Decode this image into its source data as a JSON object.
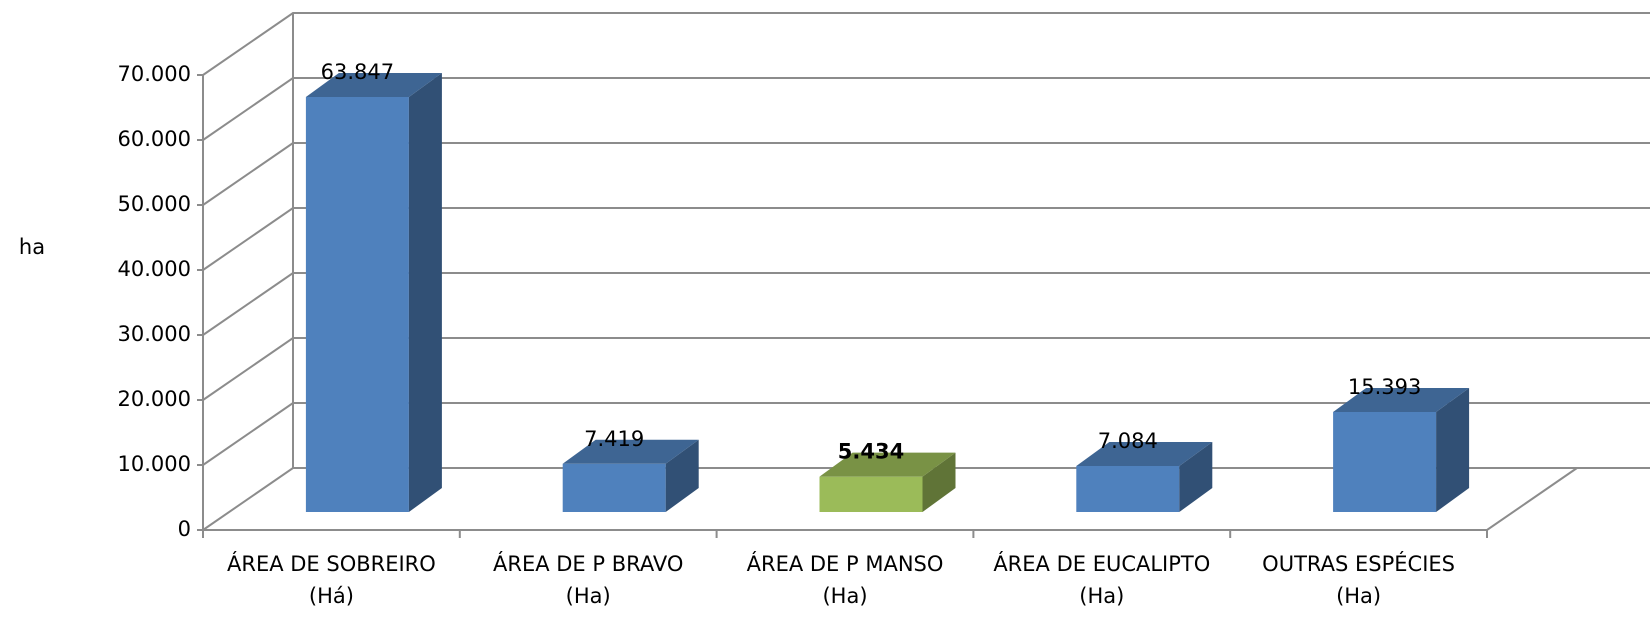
{
  "chart_data": {
    "type": "bar3d",
    "y_label": "ha",
    "categories": [
      "ÁREA DE SOBREIRO (Há)",
      "ÁREA DE P BRAVO (Ha)",
      "ÁREA DE P MANSO (Ha)",
      "ÁREA DE EUCALIPTO (Ha)",
      "OUTRAS ESPÉCIES (Ha)"
    ],
    "values": [
      63847,
      7419,
      5434,
      7084,
      15393
    ],
    "value_labels": [
      "63.847",
      "7.419",
      "5.434",
      "7.084",
      "15.393"
    ],
    "colors": [
      "#4f81bd",
      "#4f81bd",
      "#9bbb59",
      "#4f81bd",
      "#4f81bd"
    ],
    "ylim": [
      0,
      70000
    ],
    "yticks": [
      0,
      {
        "value": 10000,
        "label": "10.000"
      },
      {
        "value": 20000,
        "label": "20.000"
      },
      {
        "value": 30000,
        "label": "30.000"
      },
      {
        "value": 40000,
        "label": "40.000"
      },
      {
        "value": 50000,
        "label": "50.000"
      },
      {
        "value": 60000,
        "label": "60.000"
      },
      {
        "value": 70000,
        "label": "70.000"
      }
    ],
    "grid": true
  }
}
